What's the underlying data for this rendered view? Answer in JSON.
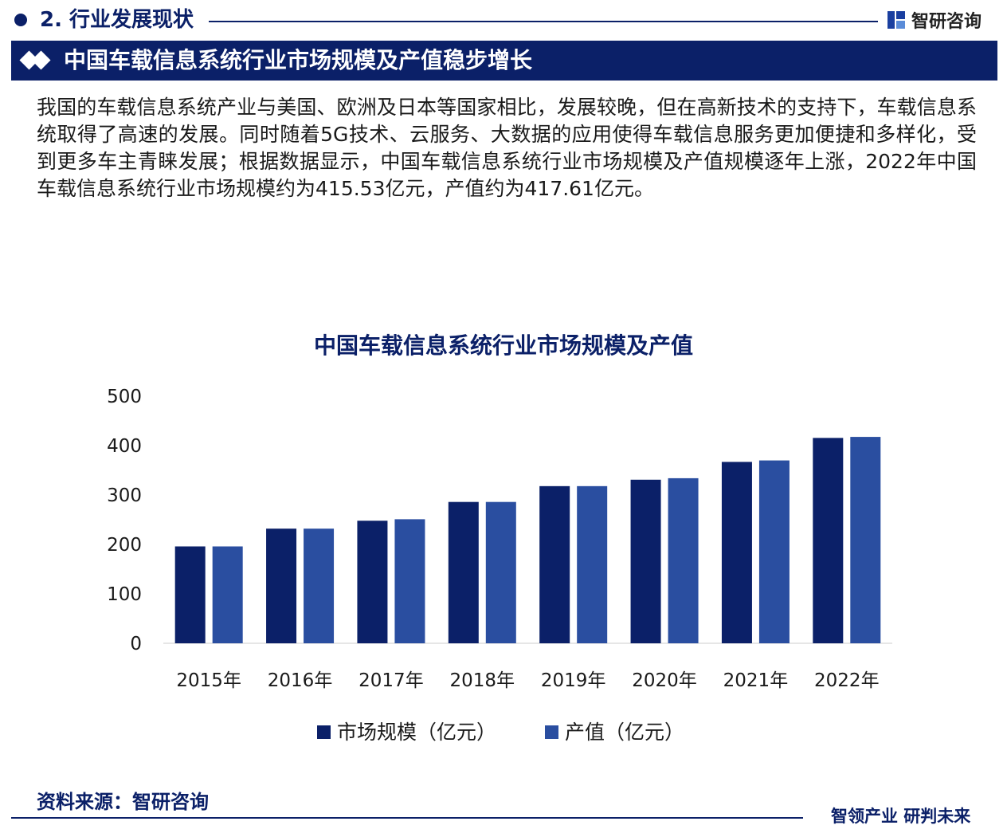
{
  "header": {
    "section_title": "2. 行业发展现状",
    "brand": "智研咨询"
  },
  "banner": {
    "title": "中国车载信息系统行业市场规模及产值稳步增长"
  },
  "intro": {
    "text": "我国的车载信息系统产业与美国、欧洲及日本等国家相比，发展较晚，但在高新技术的支持下，车载信息系统取得了高速的发展。同时随着5G技术、云服务、大数据的应用使得车载信息服务更加便捷和多样化，受到更多车主青睐发展；根据数据显示，中国车载信息系统行业市场规模及产值规模逐年上涨，2022年中国车载信息系统行业市场规模约为415.53亿元，产值约为417.61亿元。"
  },
  "chart_data": {
    "type": "bar",
    "title": "中国车载信息系统行业市场规模及产值",
    "categories": [
      "2015年",
      "2016年",
      "2017年",
      "2018年",
      "2019年",
      "2020年",
      "2021年",
      "2022年"
    ],
    "series": [
      {
        "name": "市场规模（亿元）",
        "color": "#0b2068",
        "values": [
          196,
          232,
          248,
          286,
          318,
          331,
          367,
          415.53
        ]
      },
      {
        "name": "产值（亿元）",
        "color": "#2a4ea0",
        "values": [
          196,
          232,
          251,
          286,
          318,
          334,
          370,
          417.61
        ]
      }
    ],
    "ylim": [
      0,
      500
    ],
    "yticks": [
      "0",
      "100",
      "200",
      "300",
      "400",
      "500"
    ],
    "grid": false,
    "legend": "bottom"
  },
  "footer": {
    "source": "资料来源：智研咨询",
    "slogan": "智领产业 研判未来"
  }
}
